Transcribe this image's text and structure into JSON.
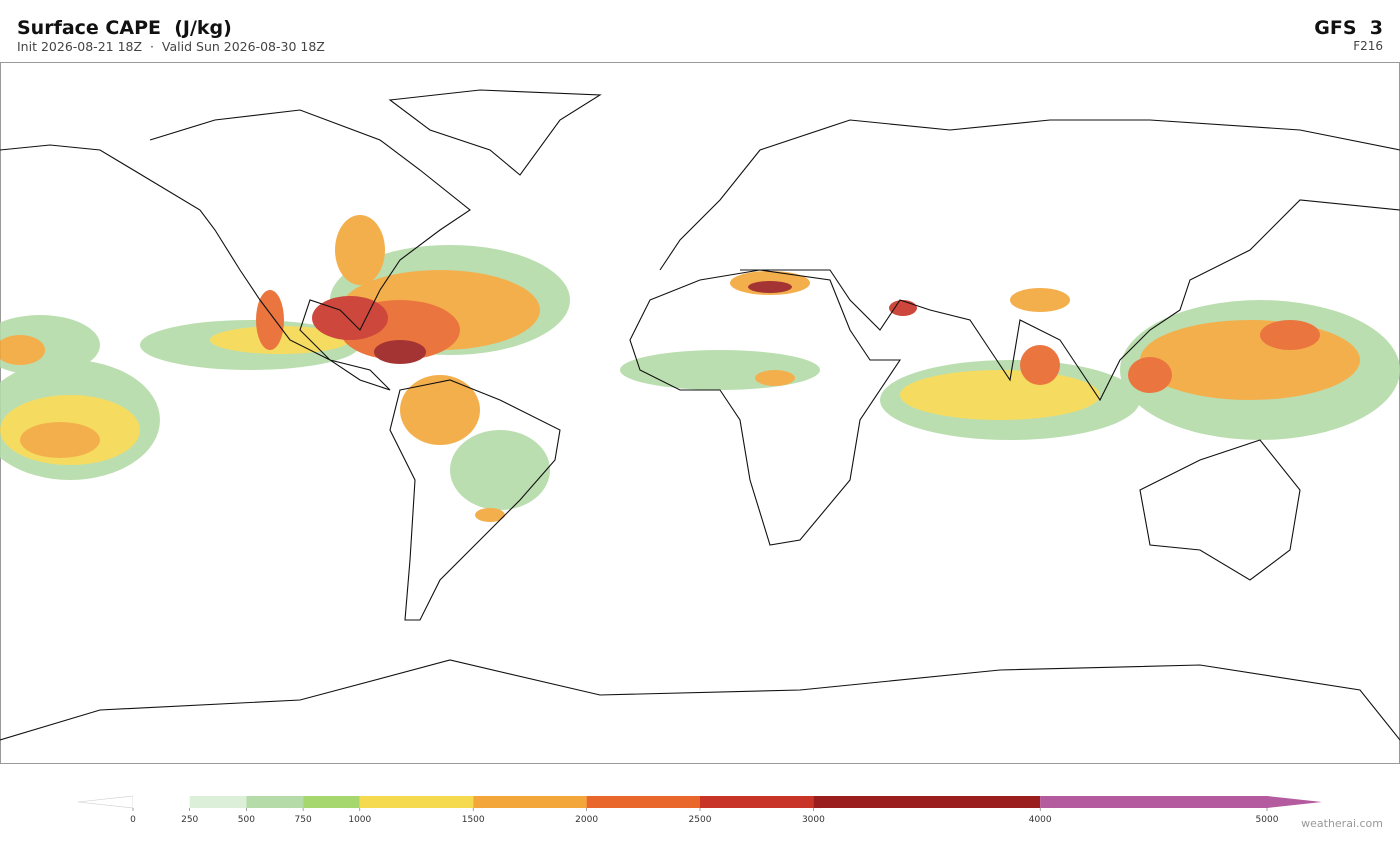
{
  "header": {
    "title": "Surface CAPE  (J/kg)",
    "subtitle": "Init 2026-08-21 18Z  ·  Valid Sun 2026-08-30 18Z",
    "model": "GFS  3",
    "forecast_hour": "F216"
  },
  "colorbar": {
    "levels": [
      0,
      250,
      500,
      750,
      1000,
      1500,
      2000,
      2500,
      3000,
      4000,
      5000
    ],
    "colors": [
      "#ffffff",
      "#dcefd8",
      "#b4dba8",
      "#a6d66e",
      "#f5d94f",
      "#f3a73a",
      "#e9672b",
      "#c83427",
      "#9b1e1f",
      "#b45a9e"
    ],
    "under_color": "#ffffff",
    "over_color": "#b45a9e"
  },
  "footer": {
    "credit": "weatherai.com"
  }
}
